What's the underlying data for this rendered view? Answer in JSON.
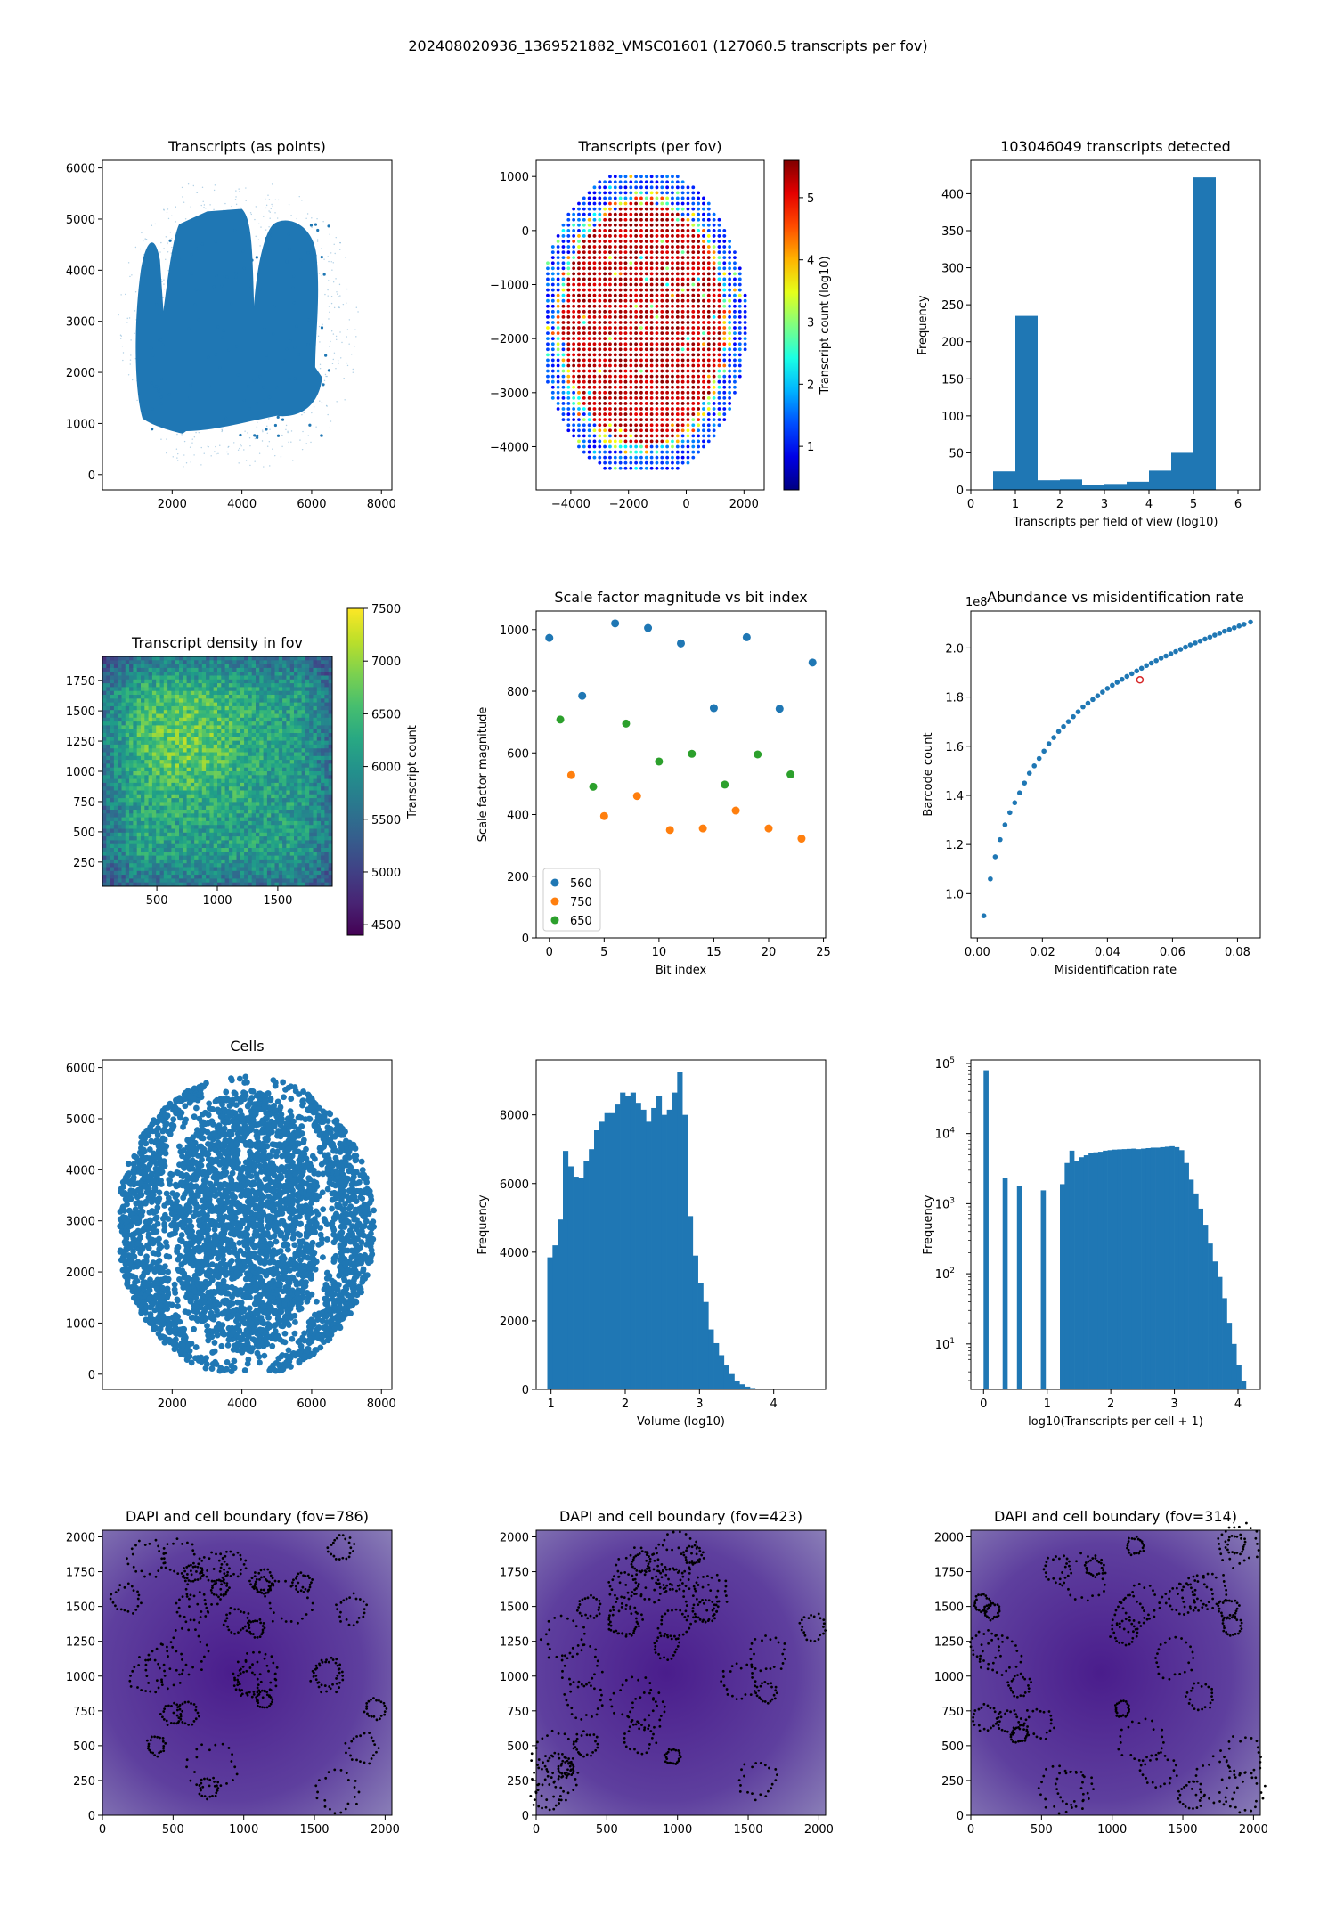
{
  "figure": {
    "suptitle": "202408020936_1369521882_VMSC01601 (127060.5 transcripts per fov)"
  },
  "colors": {
    "blue": "#1f77b4",
    "orange": "#ff7f0e",
    "green": "#2ca02c",
    "red": "#d62728",
    "dapi": "#4a2a8c"
  },
  "chart_data": [
    {
      "id": "points",
      "type": "scatter",
      "title": "Transcripts (as points)",
      "xlabel": "",
      "ylabel": "",
      "xlim": [
        0,
        8300
      ],
      "ylim": [
        -300,
        6150
      ],
      "xticks": [
        2000,
        4000,
        6000,
        8000
      ],
      "yticks": [
        0,
        1000,
        2000,
        3000,
        4000,
        5000,
        6000
      ]
    },
    {
      "id": "perfov",
      "type": "scatter",
      "title": "Transcripts (per fov)",
      "xlabel": "",
      "ylabel": "",
      "xlim": [
        -5200,
        2700
      ],
      "ylim": [
        -4800,
        1300
      ],
      "xticks": [
        -4000,
        -2000,
        0,
        2000
      ],
      "yticks": [
        1000,
        0,
        -1000,
        -2000,
        -3000,
        -4000
      ],
      "colorbar": {
        "label": "Transcript count (log10)",
        "min": 0.3,
        "max": 5.6,
        "ticks": [
          1,
          2,
          3,
          4,
          5
        ],
        "colormap": "jet"
      }
    },
    {
      "id": "hist_fov",
      "type": "bar",
      "title": "103046049 transcripts detected",
      "xlabel": "Transcripts per field of view (log10)",
      "ylabel": "Frequency",
      "xlim": [
        0,
        6.5
      ],
      "ylim": [
        0,
        445
      ],
      "xticks": [
        0,
        1,
        2,
        3,
        4,
        5,
        6
      ],
      "yticks": [
        0,
        50,
        100,
        150,
        200,
        250,
        300,
        350,
        400
      ],
      "bin_edges": [
        0.5,
        1.0,
        1.5,
        2.0,
        2.5,
        3.0,
        3.5,
        4.0,
        4.5,
        5.0,
        5.5
      ],
      "values": [
        25,
        235,
        13,
        14,
        7,
        8,
        11,
        26,
        50,
        422
      ]
    },
    {
      "id": "density",
      "type": "heatmap",
      "title": "Transcript density in fov",
      "xlabel": "",
      "ylabel": "",
      "xlim": [
        50,
        1950
      ],
      "ylim": [
        50,
        1950
      ],
      "xticks": [
        500,
        1000,
        1500
      ],
      "yticks": [
        250,
        500,
        750,
        1000,
        1250,
        1500,
        1750
      ],
      "colorbar": {
        "label": "Transcript count",
        "min": 4400,
        "max": 7500,
        "ticks": [
          4500,
          5000,
          5500,
          6000,
          6500,
          7000,
          7500
        ],
        "colormap": "viridis"
      }
    },
    {
      "id": "scale",
      "type": "scatter",
      "title": "Scale factor magnitude vs bit index",
      "xlabel": "Bit index",
      "ylabel": "Scale factor magnitude",
      "xlim": [
        -1.2,
        25.2
      ],
      "ylim": [
        0,
        1060
      ],
      "xticks": [
        0,
        5,
        10,
        15,
        20,
        25
      ],
      "yticks": [
        0,
        200,
        400,
        600,
        800,
        1000
      ],
      "legend_position": "lower-left",
      "series": [
        {
          "name": "560",
          "color": "#1f77b4",
          "x": [
            0,
            3,
            6,
            9,
            12,
            15,
            18,
            21,
            24
          ],
          "y": [
            973,
            785,
            1020,
            1005,
            955,
            745,
            975,
            743,
            893
          ]
        },
        {
          "name": "750",
          "color": "#ff7f0e",
          "x": [
            2,
            5,
            8,
            11,
            14,
            17,
            20,
            23
          ],
          "y": [
            528,
            395,
            460,
            350,
            355,
            413,
            355,
            322
          ]
        },
        {
          "name": "650",
          "color": "#2ca02c",
          "x": [
            1,
            4,
            7,
            10,
            13,
            16,
            19,
            22
          ],
          "y": [
            708,
            490,
            695,
            572,
            597,
            497,
            595,
            530
          ]
        }
      ]
    },
    {
      "id": "abund",
      "type": "scatter",
      "title": "Abundance vs misidentification rate",
      "xlabel": "Misidentification rate",
      "ylabel": "Barcode count",
      "xlim": [
        -0.002,
        0.087
      ],
      "ylim": [
        0.82,
        2.15
      ],
      "xticks": [
        0.0,
        0.02,
        0.04,
        0.06,
        0.08
      ],
      "yticks": [
        1.0,
        1.2,
        1.4,
        1.6,
        1.8,
        2.0
      ],
      "y_offset_label": "1e8",
      "series": [
        {
          "name": "",
          "color": "#1f77b4",
          "x": [
            0.002,
            0.004,
            0.0055,
            0.007,
            0.0085,
            0.01,
            0.0115,
            0.013,
            0.0145,
            0.016,
            0.0175,
            0.019,
            0.0205,
            0.022,
            0.0235,
            0.025,
            0.0265,
            0.028,
            0.0295,
            0.031,
            0.0325,
            0.034,
            0.0355,
            0.037,
            0.0385,
            0.04,
            0.0415,
            0.043,
            0.0445,
            0.046,
            0.0475,
            0.049,
            0.0505,
            0.052,
            0.0535,
            0.055,
            0.0565,
            0.058,
            0.0595,
            0.061,
            0.0625,
            0.064,
            0.0655,
            0.067,
            0.0685,
            0.07,
            0.0715,
            0.073,
            0.0745,
            0.076,
            0.0775,
            0.079,
            0.0805,
            0.082,
            0.084
          ],
          "y": [
            0.91,
            1.06,
            1.15,
            1.22,
            1.28,
            1.33,
            1.37,
            1.41,
            1.45,
            1.49,
            1.52,
            1.55,
            1.58,
            1.61,
            1.635,
            1.66,
            1.68,
            1.7,
            1.72,
            1.74,
            1.76,
            1.775,
            1.79,
            1.805,
            1.82,
            1.835,
            1.848,
            1.86,
            1.872,
            1.884,
            1.895,
            1.906,
            1.917,
            1.928,
            1.938,
            1.948,
            1.958,
            1.967,
            1.976,
            1.985,
            1.994,
            2.003,
            2.012,
            2.02,
            2.028,
            2.036,
            2.044,
            2.052,
            2.06,
            2.068,
            2.075,
            2.082,
            2.089,
            2.096,
            2.105
          ]
        }
      ],
      "highlight": {
        "x": 0.05,
        "y": 1.87,
        "color": "#d62728"
      }
    },
    {
      "id": "cells",
      "type": "scatter",
      "title": "Cells",
      "xlabel": "",
      "ylabel": "",
      "xlim": [
        0,
        8300
      ],
      "ylim": [
        -300,
        6150
      ],
      "xticks": [
        2000,
        4000,
        6000,
        8000
      ],
      "yticks": [
        0,
        1000,
        2000,
        3000,
        4000,
        5000,
        6000
      ]
    },
    {
      "id": "volume",
      "type": "bar",
      "title": "",
      "xlabel": "Volume (log10)",
      "ylabel": "Frequency",
      "xlim": [
        0.8,
        4.7
      ],
      "ylim": [
        0,
        9600
      ],
      "xticks": [
        1,
        2,
        3,
        4
      ],
      "yticks": [
        0,
        2000,
        4000,
        6000,
        8000
      ],
      "bin_start": 0.95,
      "bin_width": 0.07,
      "values": [
        3850,
        4200,
        4950,
        6950,
        6500,
        6200,
        6150,
        6650,
        7000,
        7550,
        7800,
        8050,
        8050,
        8300,
        8650,
        8550,
        8650,
        8350,
        8150,
        7800,
        8200,
        8550,
        8000,
        8150,
        8650,
        9250,
        8000,
        5050,
        3900,
        3100,
        2550,
        1750,
        1350,
        1000,
        700,
        450,
        260,
        150,
        80,
        40,
        20,
        10
      ]
    },
    {
      "id": "tpc",
      "type": "bar",
      "title": "",
      "xlabel": "log10(Transcripts per cell + 1)",
      "ylabel": "Frequency",
      "scale_y": "log",
      "xlim": [
        -0.2,
        4.35
      ],
      "ylim_log": [
        0.35,
        5.05
      ],
      "xticks": [
        0,
        1,
        2,
        3,
        4
      ],
      "yticks": [
        "10^1",
        "10^2",
        "10^3",
        "10^4",
        "10^5"
      ],
      "bin_start": 0.0,
      "bin_width": 0.075,
      "values": [
        80000,
        0,
        0,
        0,
        2300,
        0,
        0,
        1800,
        0,
        0,
        0,
        0,
        1550,
        0,
        0,
        0,
        1900,
        3800,
        5700,
        4000,
        4600,
        4900,
        5300,
        5400,
        5500,
        5700,
        5800,
        5900,
        5950,
        6000,
        6050,
        6100,
        6000,
        6100,
        6200,
        6300,
        6300,
        6400,
        6500,
        6600,
        6400,
        5800,
        3800,
        2200,
        1400,
        850,
        500,
        270,
        150,
        90,
        45,
        20,
        10,
        5,
        3,
        0,
        0
      ]
    },
    {
      "id": "dapi1",
      "type": "heatmap",
      "title": "DAPI and cell boundary (fov=786)",
      "xlabel": "",
      "ylabel": "",
      "xlim": [
        0,
        2048
      ],
      "ylim": [
        0,
        2048
      ],
      "xticks": [
        0,
        500,
        1000,
        1500,
        2000
      ],
      "yticks": [
        0,
        250,
        500,
        750,
        1000,
        1250,
        1500,
        1750,
        2000
      ]
    },
    {
      "id": "dapi2",
      "type": "heatmap",
      "title": "DAPI and cell boundary (fov=423)",
      "xlabel": "",
      "ylabel": "",
      "xlim": [
        0,
        2048
      ],
      "ylim": [
        0,
        2048
      ],
      "xticks": [
        0,
        500,
        1000,
        1500,
        2000
      ],
      "yticks": [
        0,
        250,
        500,
        750,
        1000,
        1250,
        1500,
        1750,
        2000
      ]
    },
    {
      "id": "dapi3",
      "type": "heatmap",
      "title": "DAPI and cell boundary (fov=314)",
      "xlabel": "",
      "ylabel": "",
      "xlim": [
        0,
        2048
      ],
      "ylim": [
        0,
        2048
      ],
      "xticks": [
        0,
        500,
        1000,
        1500,
        2000
      ],
      "yticks": [
        0,
        250,
        500,
        750,
        1000,
        1250,
        1500,
        1750,
        2000
      ]
    }
  ]
}
